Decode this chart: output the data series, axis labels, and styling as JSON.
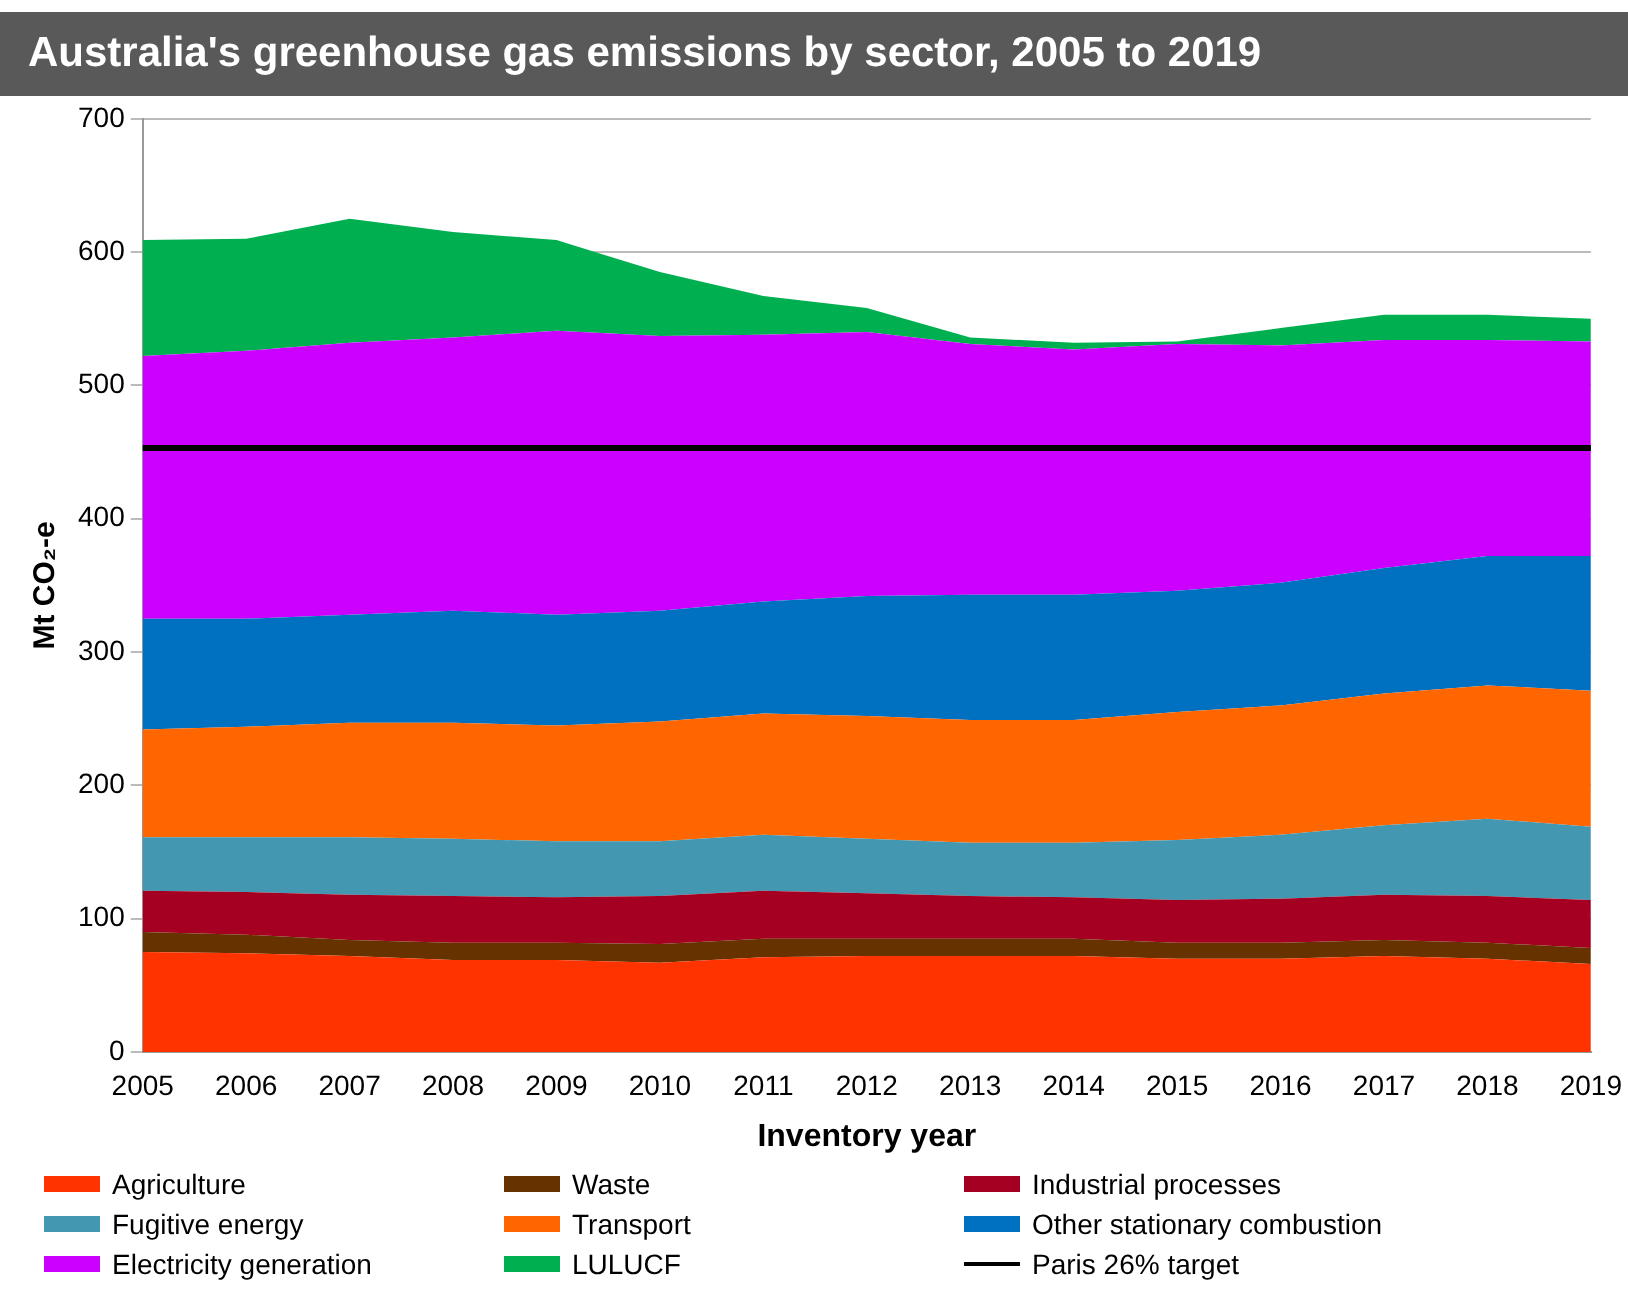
{
  "chart_data": {
    "type": "area",
    "title": "Australia's greenhouse gas emissions by sector, 2005 to 2019",
    "xlabel": "Inventory year",
    "ylabel": "Mt CO₂-e",
    "stacked": true,
    "categories": [
      "2005",
      "2006",
      "2007",
      "2008",
      "2009",
      "2010",
      "2011",
      "2012",
      "2013",
      "2014",
      "2015",
      "2016",
      "2017",
      "2018",
      "2019"
    ],
    "series": [
      {
        "name": "Agriculture",
        "color": "#ff3300",
        "values": [
          75,
          74,
          72,
          69,
          69,
          67,
          71,
          72,
          72,
          72,
          70,
          70,
          72,
          70,
          66
        ]
      },
      {
        "name": "Waste",
        "color": "#663300",
        "values": [
          15,
          14,
          12,
          13,
          13,
          14,
          14,
          13,
          13,
          13,
          12,
          12,
          12,
          12,
          12
        ]
      },
      {
        "name": "Industrial processes",
        "color": "#a50021",
        "values": [
          31,
          32,
          34,
          35,
          34,
          36,
          36,
          34,
          32,
          31,
          32,
          33,
          34,
          35,
          36
        ]
      },
      {
        "name": "Fugitive energy",
        "color": "#4397b0",
        "values": [
          40,
          41,
          43,
          43,
          42,
          41,
          42,
          41,
          40,
          41,
          45,
          48,
          52,
          58,
          55
        ]
      },
      {
        "name": "Transport",
        "color": "#ff6600",
        "values": [
          81,
          83,
          86,
          87,
          87,
          90,
          91,
          92,
          92,
          92,
          96,
          97,
          99,
          100,
          102
        ]
      },
      {
        "name": "Other stationary combustion",
        "color": "#0070c0",
        "values": [
          83,
          81,
          81,
          84,
          83,
          83,
          84,
          90,
          94,
          94,
          91,
          92,
          94,
          97,
          101
        ]
      },
      {
        "name": "Electricity generation",
        "color": "#cc00ff",
        "values": [
          197,
          201,
          204,
          205,
          213,
          206,
          200,
          198,
          188,
          184,
          185,
          178,
          171,
          162,
          161
        ]
      },
      {
        "name": "LULUCF",
        "color": "#00b050",
        "values": [
          87,
          84,
          93,
          79,
          68,
          48,
          29,
          18,
          5,
          5,
          2,
          13,
          19,
          19,
          17
        ]
      }
    ],
    "ref_lines": [
      {
        "axis": "y",
        "value": 453,
        "label": "Paris 26% target",
        "color": "#000000"
      }
    ],
    "ylim": [
      0,
      700
    ],
    "yticks": [
      0,
      100,
      200,
      300,
      400,
      500,
      600,
      700
    ],
    "grid": "y",
    "legend": "bottom"
  }
}
